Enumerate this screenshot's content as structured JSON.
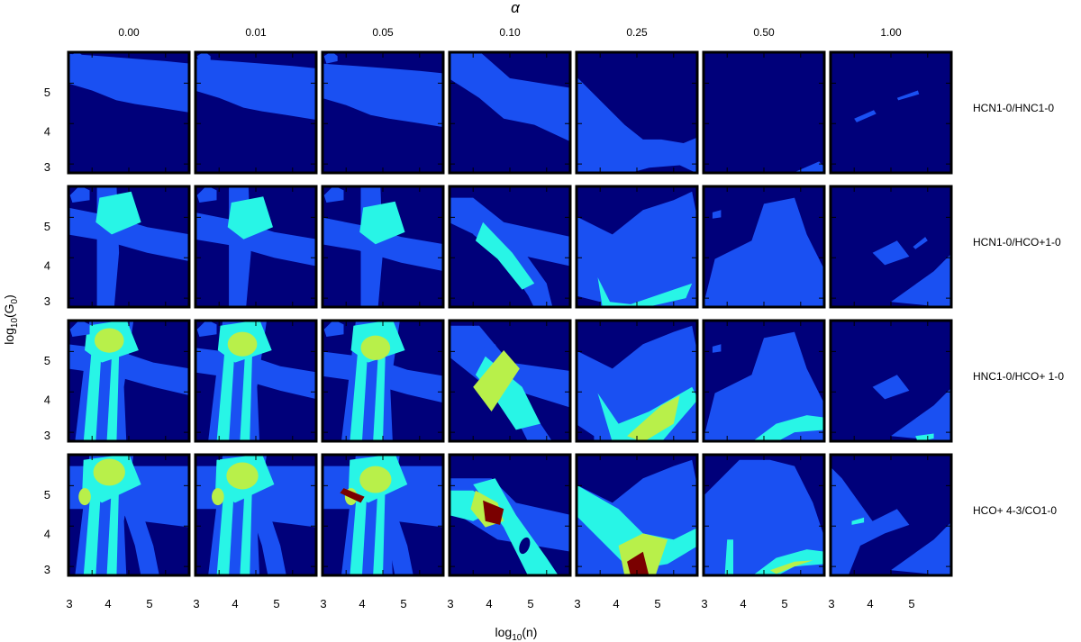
{
  "chart_data": {
    "type": "heatmap",
    "title_symbol": "α",
    "alpha_values": [
      "0.00",
      "0.01",
      "0.05",
      "0.10",
      "0.25",
      "0.50",
      "1.00"
    ],
    "row_labels": [
      "HCN1-0/HNC1-0",
      "HCN1-0/HCO+1-0",
      "HNC1-0/HCO+ 1-0",
      "HCO+ 4-3/CO1-0"
    ],
    "xlabel": {
      "base": "log",
      "sub": "10",
      "rest": "(n)"
    },
    "ylabel": {
      "base": "log",
      "sub": "10",
      "mid": "(G",
      "sub2": "0",
      "end": ")"
    },
    "x_ticks": [
      "3",
      "4",
      "5"
    ],
    "y_ticks": [
      "5",
      "4",
      "3"
    ],
    "xlim": [
      3,
      6
    ],
    "ylim": [
      2.8,
      6
    ],
    "colors": {
      "level0": "#00007a",
      "level1": "#1a50f2",
      "level2": "#28f5e6",
      "level3": "#b8f04a",
      "level4": "#7a0000"
    }
  }
}
